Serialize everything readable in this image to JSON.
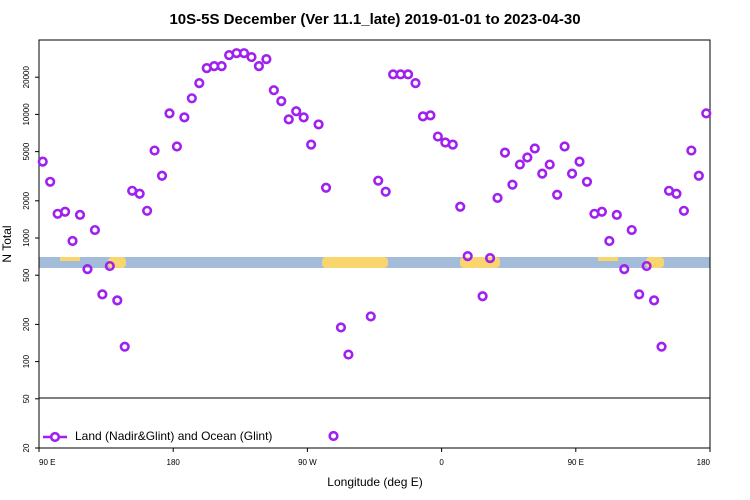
{
  "chart_data": {
    "type": "scatter",
    "title": "10S-5S December (Ver 11.1_late)   2019-01-01 to 2023-04-30",
    "x_label": "Longitude (deg E)",
    "y_label": "N Total",
    "xlim": [
      90,
      540
    ],
    "xticks": [
      {
        "value": 90,
        "label": "90 E"
      },
      180,
      {
        "value": 270,
        "label": "90 W"
      },
      {
        "value": 360,
        "label": "0"
      },
      {
        "value": 450,
        "label": "90 E"
      },
      {
        "value": 540,
        "label": "180"
      }
    ],
    "ylim": [
      20,
      40000
    ],
    "log_y": true,
    "yticks": [
      20,
      50,
      100,
      200,
      500,
      1000,
      2000,
      5000,
      10000,
      20000
    ],
    "legend": "bottom-left",
    "series": [
      {
        "name": "Land (Nadir&Glint) and Ocean (Glint)",
        "color": "#a020f0",
        "x": [
          92.5,
          97.5,
          102.5,
          107.5,
          112.5,
          117.5,
          122.5,
          127.5,
          132.5,
          137.5,
          142.5,
          147.5,
          152.5,
          157.5,
          162.5,
          167.5,
          172.5,
          177.5,
          182.5,
          187.5,
          192.5,
          197.5,
          202.5,
          207.5,
          212.5,
          217.5,
          222.5,
          227.5,
          232.5,
          237.5,
          242.5,
          247.5,
          252.5,
          257.5,
          262.5,
          267.5,
          272.5,
          277.5,
          282.5,
          287.5,
          292.5,
          297.5,
          312.5,
          317.5,
          322.5,
          327.5,
          332.5,
          337.5,
          342.5,
          347.5,
          352.5,
          357.5,
          362.5,
          367.5,
          372.5,
          377.5,
          387.5,
          392.5,
          397.5,
          402.5,
          407.5,
          412.5,
          417.5,
          422.5,
          427.5,
          432.5,
          437.5,
          442.5,
          447.5,
          452.5,
          457.5,
          462.5,
          467.5,
          472.5,
          477.5,
          482.5,
          487.5,
          492.5,
          497.5,
          502.5,
          507.5,
          512.5,
          517.5,
          522.5,
          527.5,
          532.5,
          537.5
        ],
        "values": [
          4150,
          2850,
          1570,
          1630,
          946,
          1540,
          560,
          1160,
          350,
          593,
          313,
          132,
          2410,
          2280,
          1660,
          5100,
          3190,
          10200,
          5500,
          9460,
          13500,
          17900,
          23700,
          24600,
          24600,
          30200,
          31300,
          31300,
          29100,
          24600,
          28000,
          15700,
          12800,
          9120,
          10600,
          9460,
          5700,
          8300,
          2550,
          25,
          189,
          114,
          232,
          2910,
          2370,
          21100,
          21100,
          21100,
          17900,
          9640,
          9820,
          6620,
          5930,
          5700,
          1790,
          714,
          338,
          688,
          2110,
          4910,
          2700,
          3930,
          4480,
          5300,
          3320,
          3930,
          2240,
          5500,
          3320,
          4150,
          2850,
          1570,
          1630,
          946,
          1540,
          560,
          1160,
          350,
          593,
          313,
          132,
          2410,
          2280,
          1660,
          5100,
          3190,
          10200
        ]
      }
    ]
  }
}
